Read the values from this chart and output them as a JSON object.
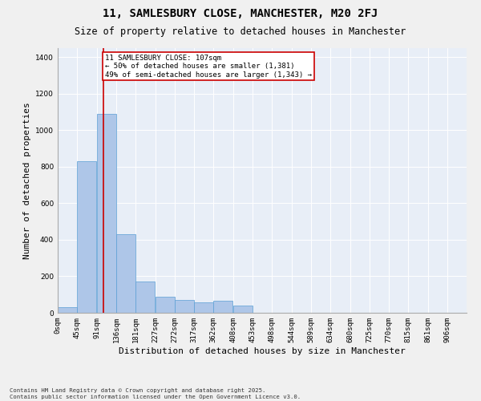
{
  "title": "11, SAMLESBURY CLOSE, MANCHESTER, M20 2FJ",
  "subtitle": "Size of property relative to detached houses in Manchester",
  "xlabel": "Distribution of detached houses by size in Manchester",
  "ylabel": "Number of detached properties",
  "bin_labels": [
    "0sqm",
    "45sqm",
    "91sqm",
    "136sqm",
    "181sqm",
    "227sqm",
    "272sqm",
    "317sqm",
    "362sqm",
    "408sqm",
    "453sqm",
    "498sqm",
    "544sqm",
    "589sqm",
    "634sqm",
    "680sqm",
    "725sqm",
    "770sqm",
    "815sqm",
    "861sqm",
    "906sqm"
  ],
  "bin_edges": [
    0,
    45,
    91,
    136,
    181,
    227,
    272,
    317,
    362,
    408,
    453,
    498,
    544,
    589,
    634,
    680,
    725,
    770,
    815,
    861,
    906
  ],
  "bar_heights": [
    30,
    830,
    1090,
    430,
    170,
    90,
    70,
    55,
    65,
    40,
    0,
    0,
    0,
    0,
    0,
    0,
    0,
    0,
    0,
    0
  ],
  "bar_color": "#aec6e8",
  "bar_edge_color": "#5a9fd4",
  "property_size": 107,
  "red_line_color": "#cc0000",
  "annotation_line1": "11 SAMLESBURY CLOSE: 107sqm",
  "annotation_line2": "← 50% of detached houses are smaller (1,381)",
  "annotation_line3": "49% of semi-detached houses are larger (1,343) →",
  "annotation_box_color": "#ffffff",
  "annotation_box_edge": "#cc0000",
  "ylim": [
    0,
    1450
  ],
  "yticks": [
    0,
    200,
    400,
    600,
    800,
    1000,
    1200,
    1400
  ],
  "bg_color": "#e8eef7",
  "fig_bg_color": "#f0f0f0",
  "footnote": "Contains HM Land Registry data © Crown copyright and database right 2025.\nContains public sector information licensed under the Open Government Licence v3.0.",
  "title_fontsize": 10,
  "subtitle_fontsize": 8.5,
  "label_fontsize": 8,
  "tick_fontsize": 6.5,
  "annot_fontsize": 6.5
}
